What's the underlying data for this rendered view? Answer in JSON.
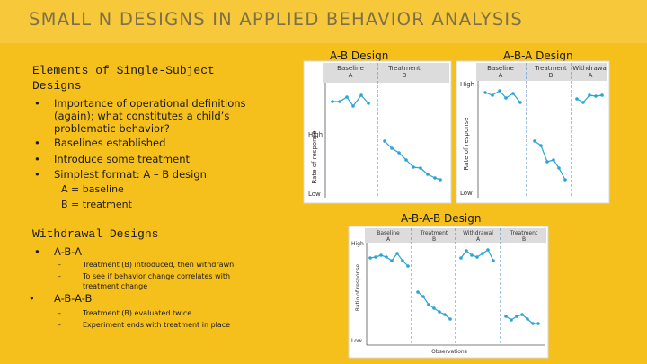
{
  "header": {
    "title": "SMALL N DESIGNS IN APPLIED BEHAVIOR ANALYSIS"
  },
  "elements": {
    "heading": "Elements of Single-Subject Designs",
    "bullets": [
      "Importance of operational definitions (again); what constitutes a child’s problematic behavior?",
      "Baselines established",
      "Introduce some treatment",
      "Simplest format: A – B design"
    ],
    "notes": [
      "A = baseline",
      "B = treatment"
    ]
  },
  "withdrawal": {
    "heading": "Withdrawal Designs",
    "items": [
      {
        "label": "A-B-A",
        "subs": [
          "Treatment (B) introduced, then withdrawn",
          "To see if behavior change correlates with treatment change"
        ]
      },
      {
        "label": "A-B-A-B",
        "subs": [
          "Treatment (B) evaluated twice",
          "Experiment ends with treatment in place"
        ]
      }
    ]
  },
  "figures": [
    {
      "title": "A-B Design",
      "phases": [
        {
          "name": "Baseline",
          "letter": "A"
        },
        {
          "name": "Treatment",
          "letter": "B"
        }
      ],
      "high": "High",
      "low": "Low",
      "y_label": "Rate of response"
    },
    {
      "title": "A-B-A Design",
      "phases": [
        {
          "name": "Baseline",
          "letter": "A"
        },
        {
          "name": "Treatment",
          "letter": "B"
        },
        {
          "name": "Withdrawal",
          "letter": "A"
        }
      ],
      "high": "High",
      "low": "Low",
      "y_label": "Rate of response"
    },
    {
      "title": "A-B-A-B Design",
      "phases": [
        {
          "name": "Baseline",
          "letter": "A"
        },
        {
          "name": "Treatment",
          "letter": "B"
        },
        {
          "name": "Withdrawal",
          "letter": "A"
        },
        {
          "name": "Treatment",
          "letter": "B"
        }
      ],
      "high": "High",
      "low": "Low",
      "y_label": "Ratio of response",
      "x_label": "Observations"
    }
  ]
}
